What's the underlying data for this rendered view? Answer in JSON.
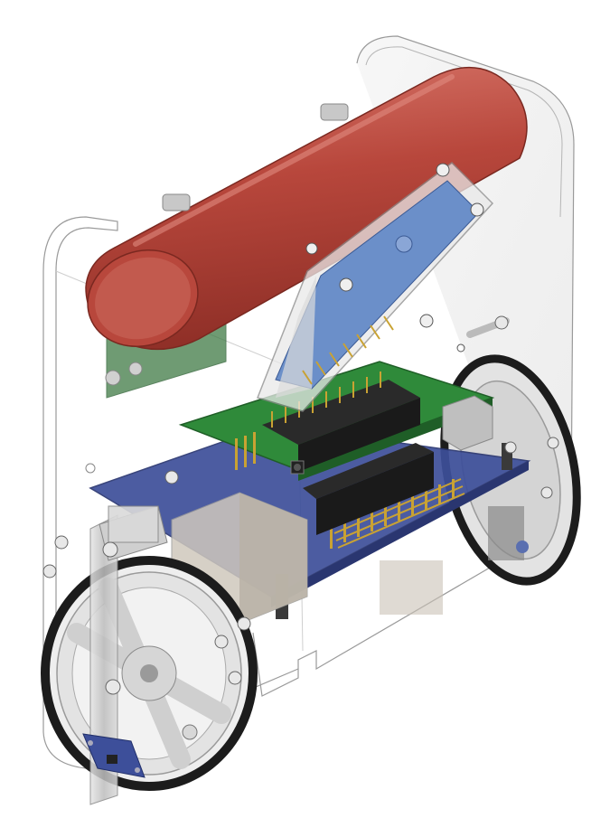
{
  "scene": {
    "background": "#ffffff",
    "colors": {
      "battery": "#b8473c",
      "battery_dark": "#8f2f27",
      "battery_light": "#d9786c",
      "pcb_blue": "#3d4f9a",
      "pcb_green": "#2f8a3a",
      "lcd_blue": "#6b8fc9",
      "header_black": "#2a2a2a",
      "pin_gold": "#c9a233",
      "metal": "#c8c8c8",
      "shell_line": "#9a9a9a",
      "tire": "#1c1c1c"
    }
  }
}
